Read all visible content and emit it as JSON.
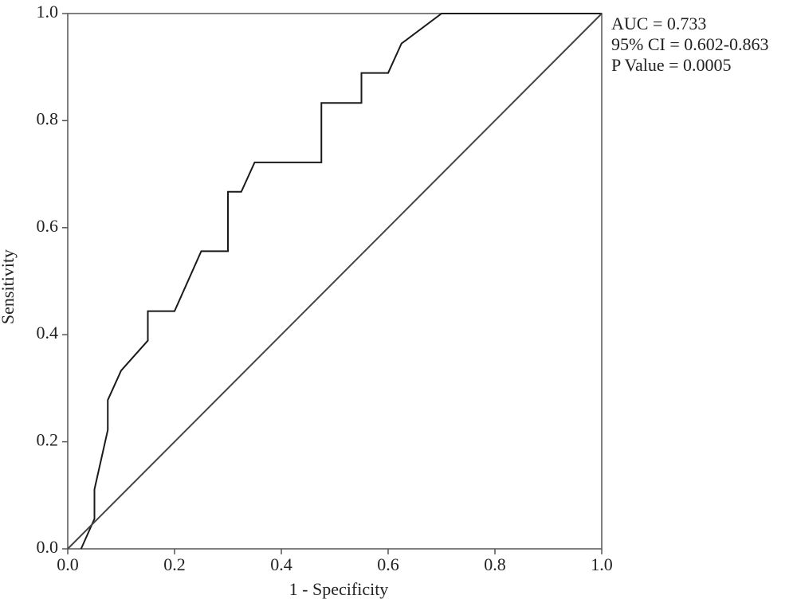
{
  "chart_data": {
    "type": "line",
    "xlabel": "1 - Specificity",
    "ylabel": "Sensitivity",
    "annotations": [
      "AUC = 0.733",
      "95% CI = 0.602-0.863",
      "P Value = 0.0005"
    ],
    "xlim": [
      0,
      1
    ],
    "ylim": [
      0,
      1
    ],
    "xticks": [
      {
        "value": 0,
        "label": "0.0"
      },
      0.2,
      0.4,
      0.6,
      0.8,
      {
        "value": 1,
        "label": "1.0"
      }
    ],
    "yticks": [
      {
        "value": 0,
        "label": "0.0"
      },
      0.2,
      0.4,
      0.6,
      0.8,
      {
        "value": 1,
        "label": "1.0"
      }
    ],
    "series": [
      {
        "color": "#1a1a1a",
        "x": [
          0.025,
          0.05,
          0.05,
          0.075,
          0.075,
          0.1,
          0.15,
          0.15,
          0.2,
          0.25,
          0.3,
          0.3,
          0.325,
          0.35,
          0.475,
          0.475,
          0.55,
          0.55,
          0.6,
          0.625,
          0.7,
          1.0
        ],
        "values": [
          0,
          0.056,
          0.111,
          0.222,
          0.278,
          0.333,
          0.389,
          0.444,
          0.444,
          0.556,
          0.556,
          0.667,
          0.667,
          0.722,
          0.722,
          0.833,
          0.833,
          0.889,
          0.889,
          0.944,
          1,
          1
        ]
      },
      {
        "color": "#444444",
        "x": [
          0,
          1
        ],
        "values": [
          0,
          1
        ]
      }
    ]
  }
}
